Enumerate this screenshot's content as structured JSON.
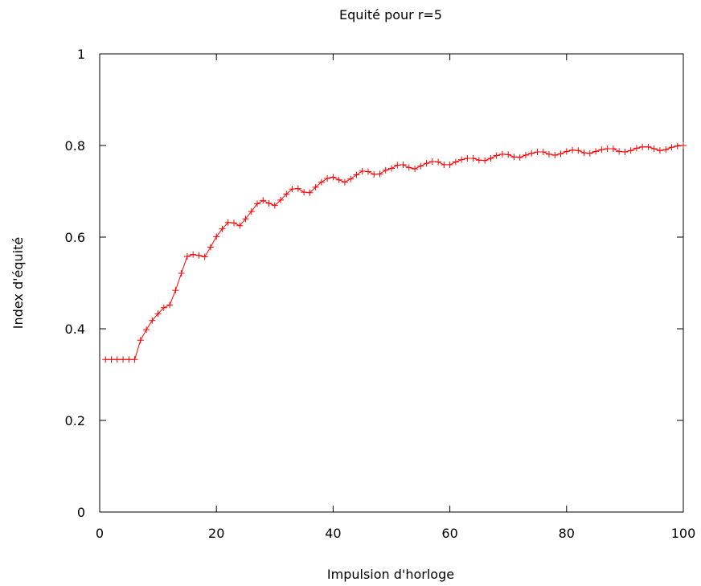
{
  "chart_data": {
    "type": "line",
    "title": "Equité pour r=5",
    "xlabel": "Impulsion d'horloge",
    "ylabel": "Index d'équité",
    "xlim": [
      0,
      100
    ],
    "ylim": [
      0,
      1
    ],
    "xticks": [
      0,
      20,
      40,
      60,
      80,
      100
    ],
    "xtick_labels": [
      "0",
      "20",
      "40",
      "60",
      "80",
      "100"
    ],
    "yticks": [
      0,
      0.2,
      0.4,
      0.6,
      0.8,
      1
    ],
    "ytick_labels": [
      "0",
      "0.2",
      "0.4",
      "0.6",
      "0.8",
      "1"
    ],
    "grid": false,
    "legend": "none",
    "marker": "plus",
    "line_color": "#ff0000",
    "series": [
      {
        "x": [
          1,
          2,
          3,
          4,
          5,
          6,
          7,
          8,
          9,
          10,
          11,
          12,
          13,
          14,
          15,
          16,
          17,
          18,
          19,
          20,
          21,
          22,
          23,
          24,
          25,
          26,
          27,
          28,
          29,
          30,
          31,
          32,
          33,
          34,
          35,
          36,
          37,
          38,
          39,
          40,
          41,
          42,
          43,
          44,
          45,
          46,
          47,
          48,
          49,
          50,
          51,
          52,
          53,
          54,
          55,
          56,
          57,
          58,
          59,
          60,
          61,
          62,
          63,
          64,
          65,
          66,
          67,
          68,
          69,
          70,
          71,
          72,
          73,
          74,
          75,
          76,
          77,
          78,
          79,
          80,
          81,
          82,
          83,
          84,
          85,
          86,
          87,
          88,
          89,
          90,
          91,
          92,
          93,
          94,
          95,
          96,
          97,
          98,
          99,
          100
        ],
        "y": [
          0.333,
          0.333,
          0.333,
          0.333,
          0.333,
          0.333,
          0.375,
          0.398,
          0.418,
          0.433,
          0.446,
          0.452,
          0.484,
          0.521,
          0.558,
          0.562,
          0.56,
          0.557,
          0.578,
          0.601,
          0.618,
          0.632,
          0.631,
          0.625,
          0.64,
          0.656,
          0.673,
          0.68,
          0.674,
          0.669,
          0.681,
          0.694,
          0.705,
          0.706,
          0.698,
          0.697,
          0.709,
          0.72,
          0.728,
          0.731,
          0.725,
          0.72,
          0.727,
          0.736,
          0.744,
          0.743,
          0.737,
          0.738,
          0.746,
          0.75,
          0.757,
          0.758,
          0.752,
          0.749,
          0.755,
          0.761,
          0.765,
          0.764,
          0.758,
          0.758,
          0.764,
          0.769,
          0.772,
          0.772,
          0.768,
          0.767,
          0.772,
          0.778,
          0.781,
          0.78,
          0.775,
          0.774,
          0.779,
          0.783,
          0.786,
          0.786,
          0.781,
          0.779,
          0.782,
          0.787,
          0.79,
          0.789,
          0.784,
          0.783,
          0.787,
          0.791,
          0.793,
          0.793,
          0.787,
          0.786,
          0.789,
          0.794,
          0.797,
          0.797,
          0.793,
          0.789,
          0.791,
          0.796,
          0.799,
          0.8
        ]
      }
    ]
  }
}
